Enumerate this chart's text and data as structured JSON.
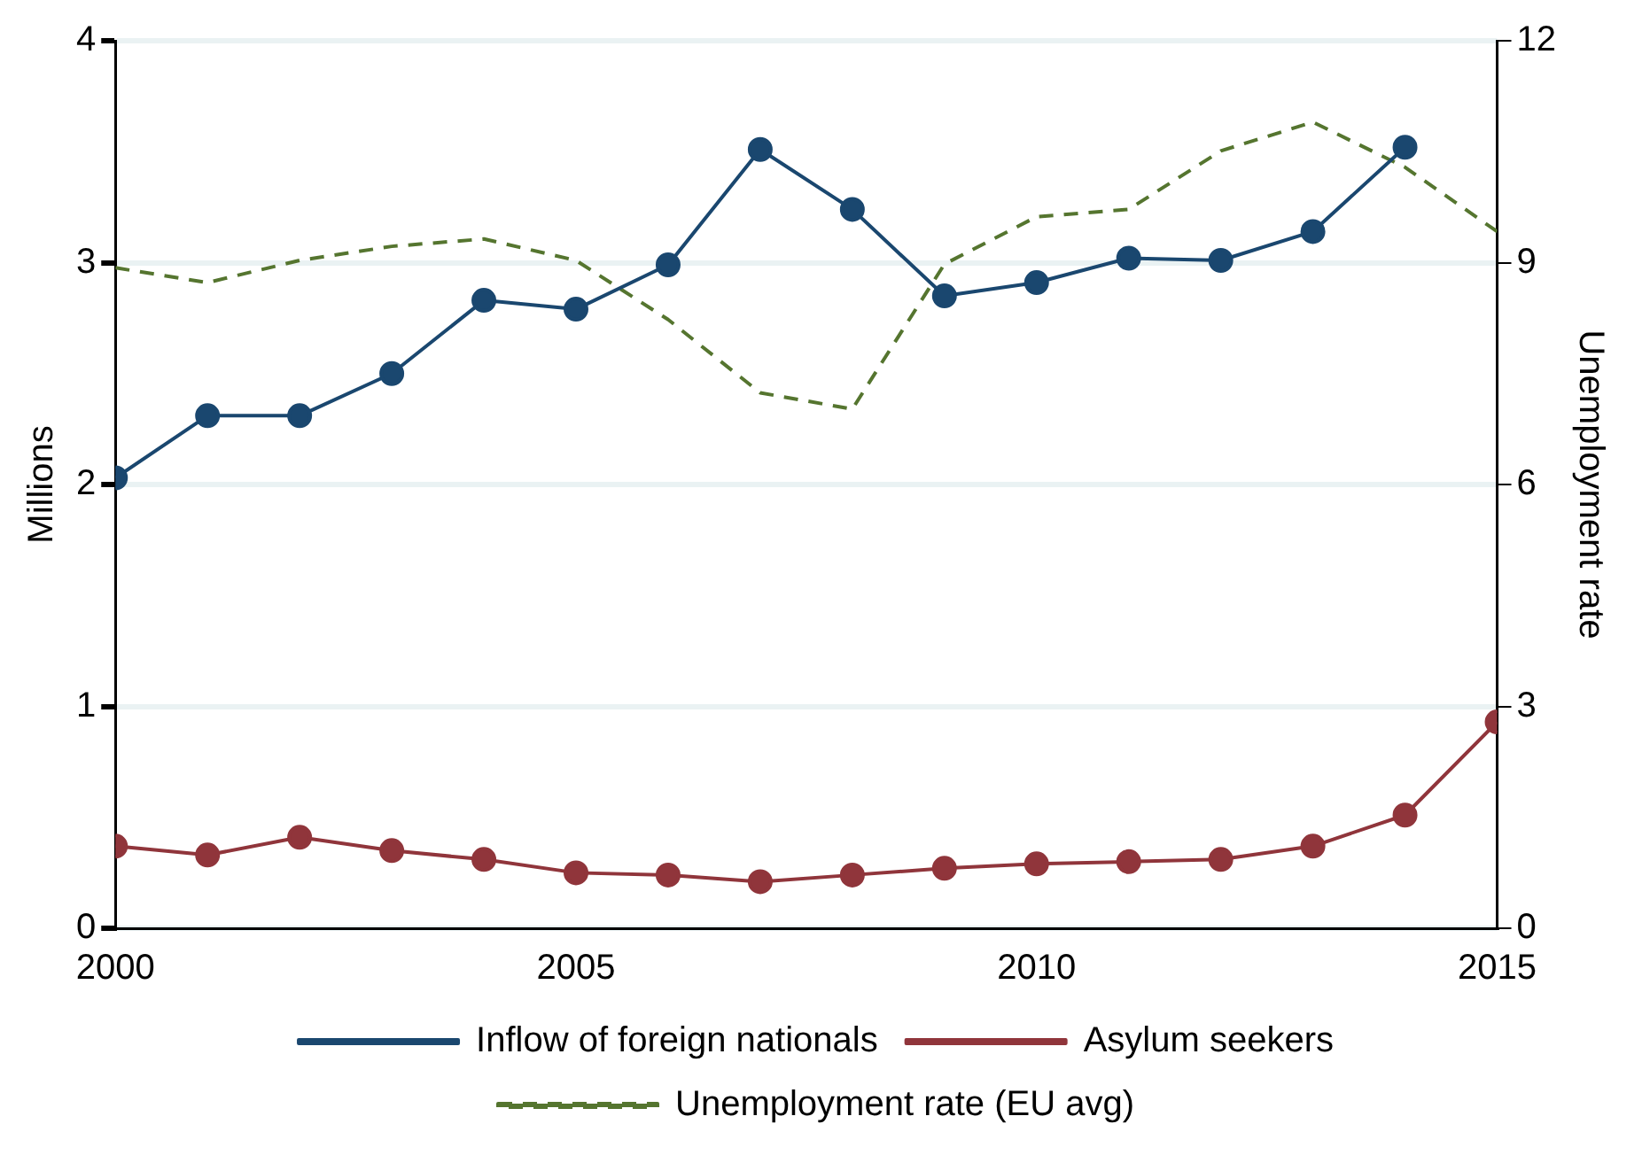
{
  "chart_data": {
    "type": "line",
    "x": [
      2000,
      2001,
      2002,
      2003,
      2004,
      2005,
      2006,
      2007,
      2008,
      2009,
      2010,
      2011,
      2012,
      2013,
      2014,
      2015
    ],
    "xlim": [
      2000,
      2015
    ],
    "xticks": [
      2000,
      2005,
      2010,
      2015
    ],
    "ylabel": "Millions",
    "y2label": "Unemployment rate",
    "ylim": [
      0,
      4
    ],
    "yticks": [
      0,
      1,
      2,
      3,
      4
    ],
    "y2lim": [
      0,
      12
    ],
    "y2ticks": [
      0,
      3,
      6,
      9,
      12
    ],
    "grid": "y",
    "legend": "bottom",
    "series": [
      {
        "name": "Inflow of foreign nationals",
        "color": "#1a476f",
        "marker": "circle",
        "line_style": "solid",
        "values": [
          2.03,
          2.31,
          2.31,
          2.5,
          2.83,
          2.79,
          2.99,
          3.51,
          3.24,
          2.85,
          2.91,
          3.02,
          3.01,
          3.14,
          3.52,
          null
        ]
      },
      {
        "name": "Asylum seekers",
        "color": "#90353b",
        "marker": "circle",
        "line_style": "solid",
        "values": [
          0.37,
          0.33,
          0.41,
          0.35,
          0.31,
          0.25,
          0.24,
          0.21,
          0.24,
          0.27,
          0.29,
          0.3,
          0.31,
          0.37,
          0.51,
          0.93
        ]
      },
      {
        "name": "Unemployment rate (EU avg)",
        "color": "#55752f",
        "marker": "none",
        "line_style": "dashed",
        "axis": "y2",
        "values": [
          8.93,
          8.73,
          9.03,
          9.22,
          9.32,
          9.03,
          8.23,
          7.24,
          7.02,
          8.98,
          9.62,
          9.72,
          10.51,
          10.9,
          10.29,
          9.42
        ]
      }
    ]
  }
}
